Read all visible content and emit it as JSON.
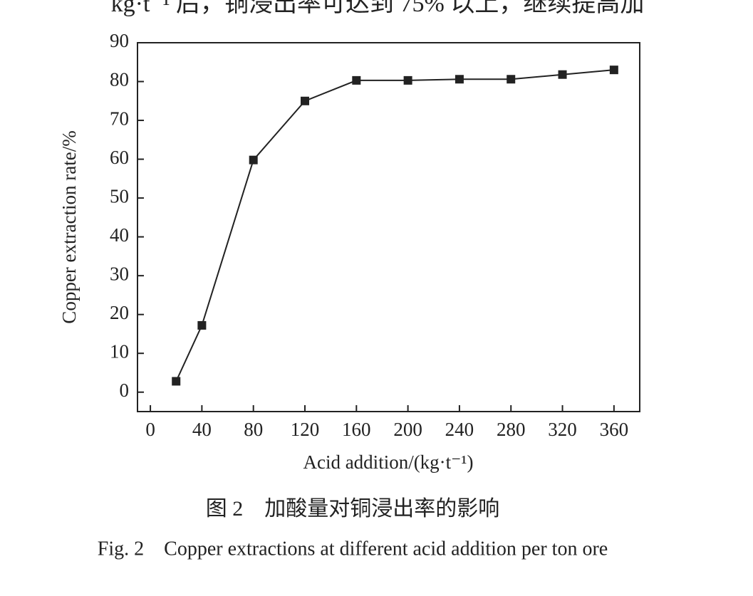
{
  "header_fragment": "kg·t⁻¹ 后，铜浸出率可达到 75% 以上，继续提高加",
  "chart_data": {
    "type": "line",
    "x_label": "Acid addition/(kg·t⁻¹)",
    "y_label": "Copper extraction rate/%",
    "x": [
      20,
      40,
      80,
      120,
      160,
      200,
      240,
      280,
      320,
      360
    ],
    "series": [
      {
        "color": "#222222",
        "values": [
          2.8,
          17.2,
          59.8,
          75.0,
          80.3,
          80.3,
          80.6,
          80.6,
          81.8,
          83.0
        ]
      }
    ],
    "xlim": [
      -10,
      380
    ],
    "ylim": [
      -5,
      90
    ],
    "xticks": [
      0,
      40,
      80,
      120,
      160,
      200,
      240,
      280,
      320,
      360
    ],
    "yticks": [
      0,
      10,
      20,
      30,
      40,
      50,
      60,
      70,
      80,
      90
    ],
    "marker": "square"
  },
  "caption_cn": "图 2　加酸量对铜浸出率的影响",
  "caption_en": "Fig. 2　Copper extractions at different acid addition per ton ore"
}
